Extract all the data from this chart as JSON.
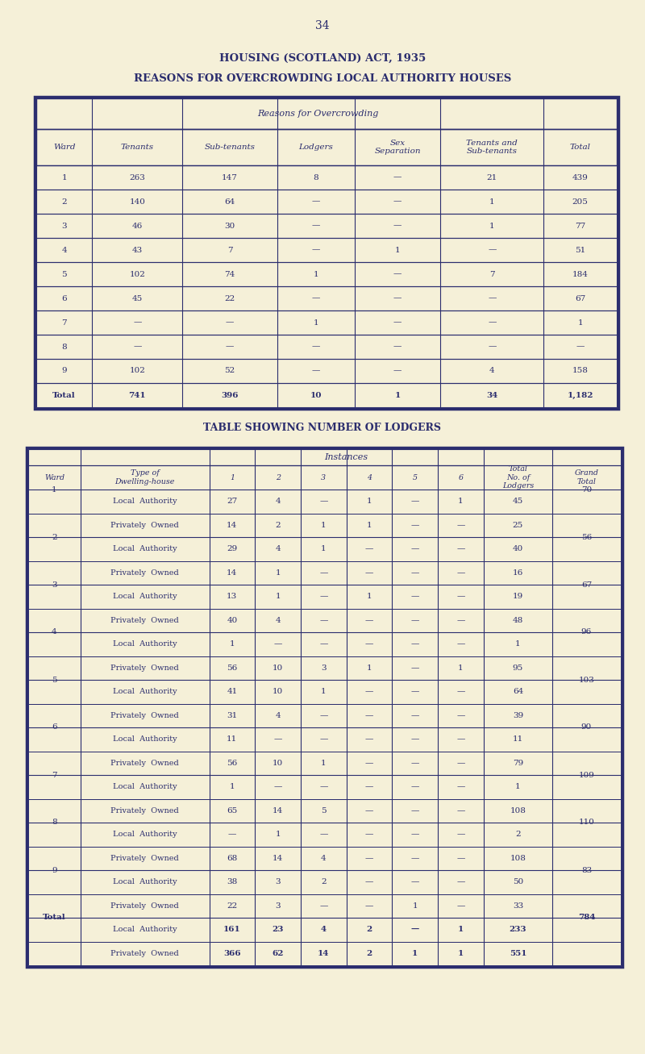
{
  "bg_color": "#f5f0d8",
  "text_color": "#2b2d6e",
  "page_number": "34",
  "title1": "HOUSING (SCOTLAND) ACT, 1935",
  "title2": "REASONS FOR OVERCROWDING LOCAL AUTHORITY HOUSES",
  "table1": {
    "col_headers": [
      "Ward",
      "Tenants",
      "Sub-tenants",
      "Lodgers",
      "Sex\nSeparation",
      "Tenants and\nSub-tenants",
      "Total"
    ],
    "group_header": "Reasons for Overcrowding",
    "rows": [
      [
        "1",
        "263",
        "147",
        "8",
        "—",
        "21",
        "439"
      ],
      [
        "2",
        "140",
        "64",
        "—",
        "—",
        "1",
        "205"
      ],
      [
        "3",
        "46",
        "30",
        "—",
        "—",
        "1",
        "77"
      ],
      [
        "4",
        "43",
        "7",
        "—",
        "1",
        "—",
        "51"
      ],
      [
        "5",
        "102",
        "74",
        "1",
        "—",
        "7",
        "184"
      ],
      [
        "6",
        "45",
        "22",
        "—",
        "—",
        "—",
        "67"
      ],
      [
        "7",
        "—",
        "—",
        "1",
        "—",
        "—",
        "1"
      ],
      [
        "8",
        "—",
        "—",
        "—",
        "—",
        "—",
        "—"
      ],
      [
        "9",
        "102",
        "52",
        "—",
        "—",
        "4",
        "158"
      ],
      [
        "Total",
        "741",
        "396",
        "10",
        "1",
        "34",
        "1,182"
      ]
    ]
  },
  "title3": "TABLE SHOWING NUMBER OF LODGERS",
  "table2": {
    "col_headers": [
      "Ward",
      "Type of\nDwelling-house",
      "1",
      "2",
      "3",
      "4",
      "5",
      "6",
      "Total\nNo. of\nLodgers",
      "Grand\nTotal"
    ],
    "instances_header": "Instances",
    "rows": [
      [
        "1",
        "Local  Authority",
        "27",
        "4",
        "—",
        "1",
        "—",
        "1",
        "45",
        "70"
      ],
      [
        "1",
        "Privately  Owned",
        "14",
        "2",
        "1",
        "1",
        "—",
        "—",
        "25",
        ""
      ],
      [
        "2",
        "Local  Authority",
        "29",
        "4",
        "1",
        "—",
        "—",
        "—",
        "40",
        "56"
      ],
      [
        "2",
        "Privately  Owned",
        "14",
        "1",
        "—",
        "—",
        "—",
        "—",
        "16",
        ""
      ],
      [
        "3",
        "Local  Authority",
        "13",
        "1",
        "—",
        "1",
        "—",
        "—",
        "19",
        "67"
      ],
      [
        "3",
        "Privately  Owned",
        "40",
        "4",
        "—",
        "—",
        "—",
        "—",
        "48",
        ""
      ],
      [
        "4",
        "Local  Authority",
        "1",
        "—",
        "—",
        "—",
        "—",
        "—",
        "1",
        "96"
      ],
      [
        "4",
        "Privately  Owned",
        "56",
        "10",
        "3",
        "1",
        "—",
        "1",
        "95",
        ""
      ],
      [
        "5",
        "Local  Authority",
        "41",
        "10",
        "1",
        "—",
        "—",
        "—",
        "64",
        "103"
      ],
      [
        "5",
        "Privately  Owned",
        "31",
        "4",
        "—",
        "—",
        "—",
        "—",
        "39",
        ""
      ],
      [
        "6",
        "Local  Authority",
        "11",
        "—",
        "—",
        "—",
        "—",
        "—",
        "11",
        "90"
      ],
      [
        "6",
        "Privately  Owned",
        "56",
        "10",
        "1",
        "—",
        "—",
        "—",
        "79",
        ""
      ],
      [
        "7",
        "Local  Authority",
        "1",
        "—",
        "—",
        "—",
        "—",
        "—",
        "1",
        "109"
      ],
      [
        "7",
        "Privately  Owned",
        "65",
        "14",
        "5",
        "—",
        "—",
        "—",
        "108",
        ""
      ],
      [
        "8",
        "Local  Authority",
        "—",
        "1",
        "—",
        "—",
        "—",
        "—",
        "2",
        "110"
      ],
      [
        "8",
        "Privately  Owned",
        "68",
        "14",
        "4",
        "—",
        "—",
        "—",
        "108",
        ""
      ],
      [
        "9",
        "Local  Authority",
        "38",
        "3",
        "2",
        "—",
        "—",
        "—",
        "50",
        "83"
      ],
      [
        "9",
        "Privately  Owned",
        "22",
        "3",
        "—",
        "—",
        "1",
        "—",
        "33",
        ""
      ],
      [
        "Total",
        "Local  Authority",
        "161",
        "23",
        "4",
        "2",
        "—",
        "1",
        "233",
        "784"
      ],
      [
        "Total",
        "Privately  Owned",
        "366",
        "62",
        "14",
        "2",
        "1",
        "1",
        "551",
        ""
      ]
    ]
  }
}
